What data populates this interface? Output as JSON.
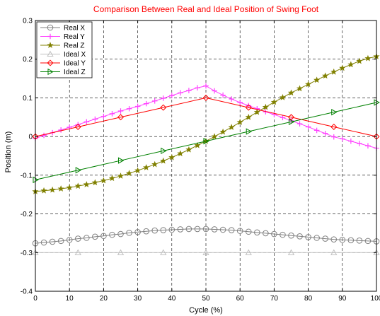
{
  "chart_data": {
    "type": "line",
    "title": "Comparison Between Real and Ideal Position of Swing Foot",
    "title_color": "#ff0000",
    "xlabel": "Cycle (%)",
    "ylabel": "Position (m)",
    "xlim": [
      0,
      100
    ],
    "ylim": [
      -0.4,
      0.3
    ],
    "xticks": [
      0,
      10,
      20,
      30,
      40,
      50,
      60,
      70,
      80,
      90,
      100
    ],
    "yticks": [
      -0.4,
      -0.3,
      -0.2,
      -0.1,
      0,
      0.1,
      0.2,
      0.3
    ],
    "xtick_labels": [
      "0",
      "10",
      "20",
      "30",
      "40",
      "50",
      "60",
      "70",
      "80",
      "90",
      "100"
    ],
    "ytick_labels": [
      "-0.4",
      "-0.3",
      "-0.2",
      "-0.1",
      "0",
      "0.1",
      "0.2",
      "0.3"
    ],
    "grid": true,
    "grid_style": "dashed",
    "legend_position": "top-left",
    "series": [
      {
        "name": "Real X",
        "color": "#808080",
        "marker": "circle",
        "x": [
          0,
          2.5,
          5,
          7.5,
          10,
          12.5,
          15,
          17.5,
          20,
          22.5,
          25,
          27.5,
          30,
          32.5,
          35,
          37.5,
          40,
          42.5,
          45,
          47.5,
          50,
          52.5,
          55,
          57.5,
          60,
          62.5,
          65,
          67.5,
          70,
          72.5,
          75,
          77.5,
          80,
          82.5,
          85,
          87.5,
          90,
          92.5,
          95,
          97.5,
          100
        ],
        "y": [
          -0.276,
          -0.274,
          -0.272,
          -0.27,
          -0.267,
          -0.264,
          -0.262,
          -0.259,
          -0.257,
          -0.254,
          -0.252,
          -0.249,
          -0.247,
          -0.245,
          -0.243,
          -0.242,
          -0.241,
          -0.24,
          -0.239,
          -0.239,
          -0.239,
          -0.24,
          -0.241,
          -0.242,
          -0.244,
          -0.246,
          -0.248,
          -0.25,
          -0.252,
          -0.254,
          -0.256,
          -0.258,
          -0.26,
          -0.262,
          -0.264,
          -0.266,
          -0.267,
          -0.268,
          -0.269,
          -0.27,
          -0.271
        ]
      },
      {
        "name": "Real Y",
        "color": "#ff40ff",
        "marker": "plus",
        "x": [
          0,
          2.5,
          5,
          7.5,
          10,
          12.5,
          15,
          17.5,
          20,
          22.5,
          25,
          27.5,
          30,
          32.5,
          35,
          37.5,
          40,
          42.5,
          45,
          47.5,
          50,
          52.5,
          55,
          57.5,
          60,
          62.5,
          65,
          67.5,
          70,
          72.5,
          75,
          77.5,
          80,
          82.5,
          85,
          87.5,
          90,
          92.5,
          95,
          97.5,
          100
        ],
        "y": [
          -0.005,
          0.003,
          0.01,
          0.017,
          0.024,
          0.031,
          0.038,
          0.045,
          0.052,
          0.059,
          0.066,
          0.072,
          0.078,
          0.085,
          0.092,
          0.099,
          0.106,
          0.113,
          0.119,
          0.126,
          0.131,
          0.118,
          0.107,
          0.097,
          0.088,
          0.08,
          0.072,
          0.064,
          0.057,
          0.049,
          0.041,
          0.033,
          0.025,
          0.016,
          0.008,
          -0.001,
          -0.006,
          -0.012,
          -0.018,
          -0.024,
          -0.03
        ]
      },
      {
        "name": "Real Z",
        "color": "#808000",
        "marker": "star",
        "x": [
          0,
          2.5,
          5,
          7.5,
          10,
          12.5,
          15,
          17.5,
          20,
          22.5,
          25,
          27.5,
          30,
          32.5,
          35,
          37.5,
          40,
          42.5,
          45,
          47.5,
          50,
          52.5,
          55,
          57.5,
          60,
          62.5,
          65,
          67.5,
          70,
          72.5,
          75,
          77.5,
          80,
          82.5,
          85,
          87.5,
          90,
          92.5,
          95,
          97.5,
          100
        ],
        "y": [
          -0.142,
          -0.14,
          -0.138,
          -0.135,
          -0.132,
          -0.128,
          -0.124,
          -0.119,
          -0.114,
          -0.108,
          -0.102,
          -0.095,
          -0.088,
          -0.08,
          -0.072,
          -0.063,
          -0.054,
          -0.044,
          -0.034,
          -0.023,
          -0.012,
          0.0,
          0.012,
          0.024,
          0.037,
          0.05,
          0.063,
          0.076,
          0.089,
          0.101,
          0.113,
          0.124,
          0.135,
          0.146,
          0.157,
          0.167,
          0.177,
          0.186,
          0.195,
          0.202,
          0.207
        ]
      },
      {
        "name": "Ideal X",
        "color": "#c0c0c0",
        "marker": "triangle-up",
        "x": [
          0,
          12.5,
          25,
          37.5,
          50,
          62.5,
          75,
          87.5,
          100
        ],
        "y": [
          -0.3,
          -0.3,
          -0.3,
          -0.3,
          -0.3,
          -0.3,
          -0.3,
          -0.3,
          -0.3
        ]
      },
      {
        "name": "Ideal Y",
        "color": "#ff0000",
        "marker": "diamond",
        "x": [
          0,
          12.5,
          25,
          37.5,
          50,
          62.5,
          75,
          87.5,
          100
        ],
        "y": [
          0,
          0.025,
          0.05,
          0.075,
          0.1,
          0.075,
          0.05,
          0.025,
          0
        ]
      },
      {
        "name": "Ideal Z",
        "color": "#008000",
        "marker": "triangle-right",
        "x": [
          0,
          12.5,
          25,
          37.5,
          50,
          62.5,
          75,
          87.5,
          100
        ],
        "y": [
          -0.112,
          -0.087,
          -0.062,
          -0.037,
          -0.012,
          0.013,
          0.038,
          0.063,
          0.088
        ]
      }
    ]
  }
}
